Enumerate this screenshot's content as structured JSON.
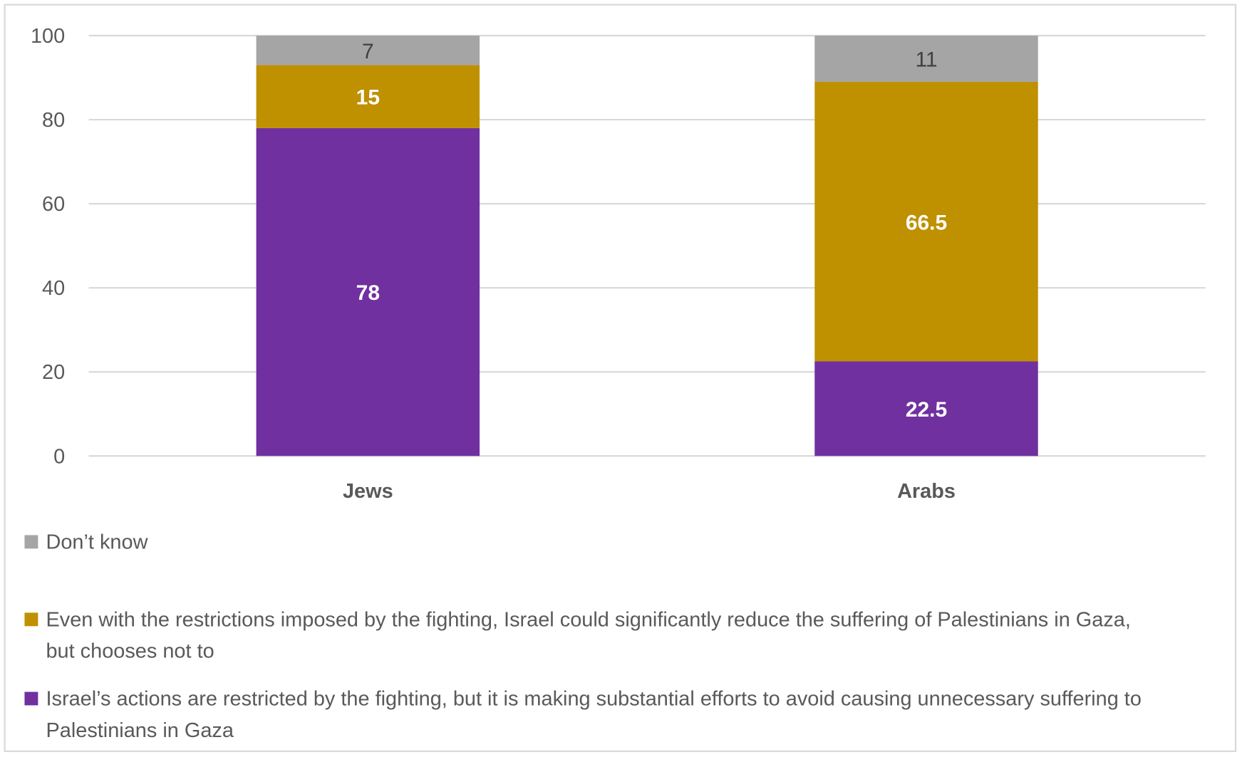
{
  "chart_data": {
    "type": "bar",
    "stacked": true,
    "categories": [
      "Jews",
      "Arabs"
    ],
    "series": [
      {
        "name": "Israel’s actions are restricted by the fighting, but it is making substantial efforts to avoid causing unnecessary suffering to Palestinians in Gaza",
        "values": [
          78,
          22.5
        ],
        "color": "#7030A0",
        "label_color": "#ffffff"
      },
      {
        "name": "Even with the restrictions imposed by the fighting, Israel could significantly reduce the suffering of Palestinians in Gaza, but chooses not to",
        "values": [
          15,
          66.5
        ],
        "color": "#BF9000",
        "label_color": "#ffffff"
      },
      {
        "name": "Don’t know",
        "values": [
          7,
          11
        ],
        "color": "#A5A5A5",
        "label_color": "#404040"
      }
    ],
    "data_labels": [
      [
        "78",
        "22.5"
      ],
      [
        "15",
        "66.5"
      ],
      [
        "7",
        "11"
      ]
    ],
    "ylim": [
      0,
      100
    ],
    "yticks": [
      "0",
      "20",
      "40",
      "60",
      "80",
      "100"
    ],
    "grid": true,
    "legend_position": "bottom",
    "legend_order": [
      "Don’t know",
      "Even with the restrictions imposed by the fighting, Israel could significantly reduce the suffering of Palestinians in Gaza, but chooses not to",
      "Israel’s actions are restricted by the fighting, but it is making substantial efforts to avoid causing unnecessary suffering to Palestinians in Gaza"
    ]
  }
}
